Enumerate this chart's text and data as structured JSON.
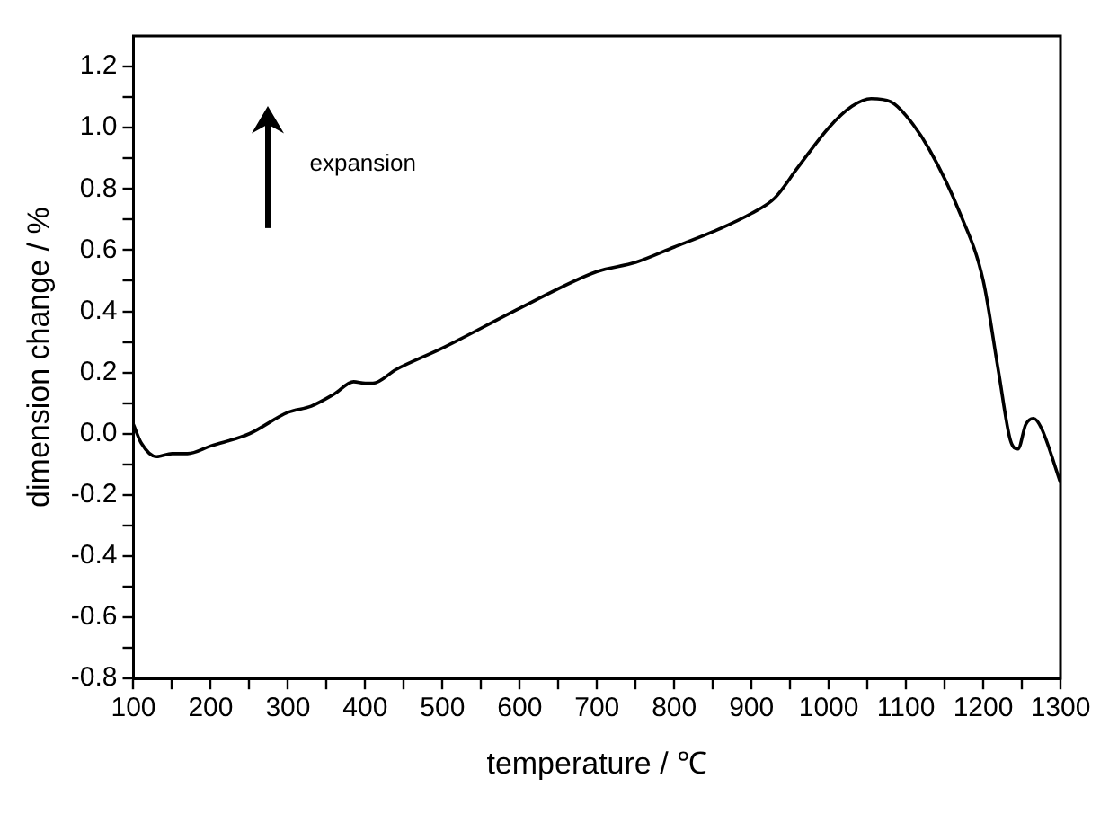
{
  "chart_data": {
    "type": "line",
    "xlabel": "temperature / ℃",
    "ylabel": "dimension change / %",
    "annotations": [
      "expansion"
    ],
    "x": [
      100,
      110,
      130,
      150,
      170,
      200,
      250,
      300,
      330,
      360,
      385,
      400,
      410,
      440,
      500,
      600,
      700,
      750,
      800,
      850,
      900,
      930,
      960,
      1000,
      1030,
      1055,
      1080,
      1100,
      1130,
      1170,
      1200,
      1220,
      1235,
      1245,
      1255,
      1265,
      1275,
      1300
    ],
    "series": [
      {
        "color": "#000000",
        "values": [
          0.03,
          -0.03,
          -0.075,
          -0.065,
          -0.065,
          -0.04,
          0.0,
          0.07,
          0.09,
          0.13,
          0.17,
          0.165,
          0.165,
          0.21,
          0.28,
          0.41,
          0.53,
          0.56,
          0.61,
          0.66,
          0.72,
          0.77,
          0.87,
          1.0,
          1.07,
          1.095,
          1.085,
          1.04,
          0.93,
          0.72,
          0.5,
          0.2,
          -0.02,
          -0.05,
          0.03,
          0.05,
          0.02,
          -0.16
        ]
      }
    ],
    "xlim": [
      100,
      1300
    ],
    "xticks": [
      100,
      {
        "value": 150,
        "label": null
      },
      200,
      {
        "value": 250,
        "label": null
      },
      300,
      {
        "value": 350,
        "label": null
      },
      400,
      {
        "value": 450,
        "label": null
      },
      500,
      {
        "value": 550,
        "label": null
      },
      600,
      {
        "value": 650,
        "label": null
      },
      700,
      {
        "value": 750,
        "label": null
      },
      800,
      {
        "value": 850,
        "label": null
      },
      900,
      {
        "value": 950,
        "label": null
      },
      1000,
      {
        "value": 1050,
        "label": null
      },
      1100,
      {
        "value": 1150,
        "label": null
      },
      1200,
      {
        "value": 1250,
        "label": null
      },
      1300
    ],
    "ylim": [
      -0.8,
      1.3
    ],
    "yticks": [
      {
        "value": -0.8,
        "label": "-0.8"
      },
      {
        "value": -0.7,
        "label": null
      },
      {
        "value": -0.6,
        "label": "-0.6"
      },
      {
        "value": -0.5,
        "label": null
      },
      {
        "value": -0.4,
        "label": "-0.4"
      },
      {
        "value": -0.3,
        "label": null
      },
      {
        "value": -0.2,
        "label": "-0.2"
      },
      {
        "value": -0.1,
        "label": null
      },
      {
        "value": 0,
        "label": "0.0"
      },
      {
        "value": 0.1,
        "label": null
      },
      {
        "value": 0.2,
        "label": "0.2"
      },
      {
        "value": 0.3,
        "label": null
      },
      {
        "value": 0.4,
        "label": "0.4"
      },
      {
        "value": 0.5,
        "label": null
      },
      {
        "value": 0.6,
        "label": "0.6"
      },
      {
        "value": 0.7,
        "label": null
      },
      {
        "value": 0.8,
        "label": "0.8"
      },
      {
        "value": 0.9,
        "label": null
      },
      {
        "value": 1.0,
        "label": "1.0"
      },
      {
        "value": 1.1,
        "label": null
      },
      {
        "value": 1.2,
        "label": "1.2"
      }
    ],
    "grid": false,
    "legend": false,
    "marker": "none",
    "line_style": "solid"
  }
}
